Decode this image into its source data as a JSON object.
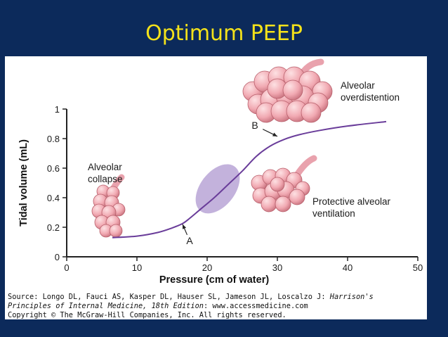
{
  "slide": {
    "title": "Optimum PEEP"
  },
  "chart_data": {
    "type": "line",
    "xlabel": "Pressure (cm of water)",
    "ylabel": "Tidal volume (mL)",
    "xlim": [
      0,
      50
    ],
    "ylim": [
      0,
      1
    ],
    "xticks": [
      0,
      10,
      20,
      30,
      40,
      50
    ],
    "yticks": [
      0,
      0.2,
      0.4,
      0.6,
      0.8,
      1
    ],
    "ytick_labels": [
      "0",
      "0.2",
      "0.4",
      "0.6",
      "0.8",
      "1"
    ],
    "grid": false,
    "series": [
      {
        "x": [
          6.5,
          10,
          13,
          15,
          16.5,
          17.5,
          19,
          21,
          23,
          25,
          27,
          29,
          31,
          33,
          36,
          40,
          45.5
        ],
        "y": [
          0.13,
          0.14,
          0.165,
          0.195,
          0.225,
          0.26,
          0.32,
          0.4,
          0.49,
          0.58,
          0.68,
          0.75,
          0.795,
          0.825,
          0.855,
          0.885,
          0.915
        ]
      }
    ],
    "highlight_region": {
      "center": [
        21.5,
        0.46
      ],
      "semi_x": 4.5,
      "semi_y": 0.2
    },
    "annotations": [
      {
        "id": "A",
        "label": "A",
        "text_at": [
          17.5,
          0.11
        ],
        "arrow_to": [
          16.5,
          0.22
        ]
      },
      {
        "id": "B",
        "label": "B",
        "text_at": [
          26.8,
          0.89
        ],
        "arrow_to": [
          30,
          0.815
        ]
      }
    ],
    "illustration_labels": {
      "collapse": [
        "Alveolar",
        "collapse"
      ],
      "overdistention": [
        "Alveolar",
        "overdistention"
      ],
      "protective": [
        "Protective alveolar",
        "ventilation"
      ]
    }
  },
  "source": {
    "line1_prefix": "Source: Longo DL, Fauci AS, Kasper DL, Hauser SL, Jameson JL, Loscalzo J: ",
    "line1_italic": "Harrison's",
    "line2_italic": "Principles of Internal Medicine, 18th Edition",
    "line2_suffix": ": www.accessmedicine.com",
    "line3": "Copyright © The McGraw-Hill Companies, Inc. All rights reserved."
  }
}
